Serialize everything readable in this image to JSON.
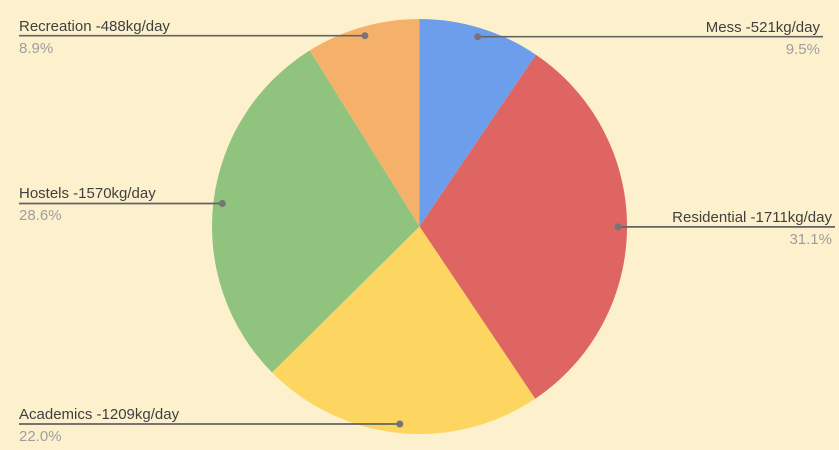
{
  "chart_data": {
    "type": "pie",
    "title": "",
    "categories": [
      "Mess",
      "Residential",
      "Academics",
      "Hostels",
      "Recreation"
    ],
    "values": [
      521,
      1711,
      1209,
      1570,
      488
    ],
    "unit": "kg/day",
    "slice_labels": [
      "Mess -521kg/day",
      "Residential -1711kg/day",
      "Academics -1209kg/day",
      "Hostels -1570kg/day",
      "Recreation -488kg/day"
    ],
    "percent_labels": [
      "9.5%",
      "31.1%",
      "22.0%",
      "28.6%",
      "8.9%"
    ],
    "colors": [
      "#6D9EEB",
      "#DE6562",
      "#FDD662",
      "#90C37D",
      "#F5B16A"
    ],
    "direction": "clockwise",
    "start_angle_deg": 0,
    "legend_position": "outside-labeled-leader-lines"
  },
  "style": {
    "background": "#FDF1CD",
    "label_color": "#404040",
    "percent_color": "#9E9E9E",
    "leader_line_color": "#636363",
    "leader_dot_color": "#757575"
  }
}
